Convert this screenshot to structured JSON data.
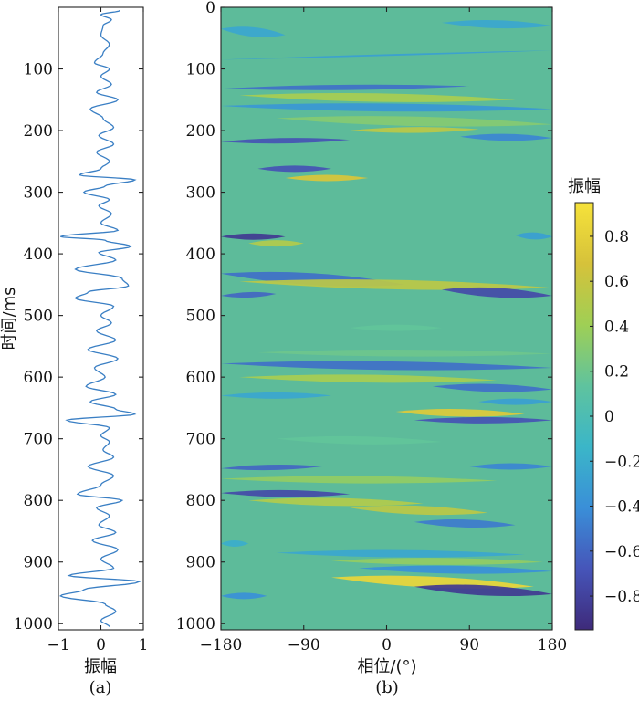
{
  "chart_data": [
    {
      "id": "trace",
      "type": "line",
      "panel_label": "(a)",
      "xlabel": "振幅",
      "ylabel": "时间/ms",
      "xlim": [
        -1,
        1
      ],
      "ylim": [
        0,
        1010
      ],
      "y_reversed": true,
      "xticks": [
        -1,
        0,
        1
      ],
      "xtick_labels": [
        "−1",
        "0",
        "1"
      ],
      "yticks": [
        100,
        200,
        300,
        400,
        500,
        600,
        700,
        800,
        900,
        1000
      ],
      "ytick_labels": [
        "100",
        "200",
        "300",
        "400",
        "500",
        "600",
        "700",
        "800",
        "900",
        "1000"
      ],
      "line_color": "#3a7fc4",
      "series": [
        {
          "time_ms": [
            5,
            12,
            20,
            30,
            45,
            60,
            75,
            90,
            100,
            112,
            125,
            138,
            150,
            165,
            180,
            195,
            208,
            222,
            235,
            250,
            262,
            272,
            280,
            290,
            300,
            312,
            322,
            335,
            350,
            362,
            372,
            378,
            388,
            398,
            410,
            425,
            440,
            452,
            462,
            472,
            485,
            500,
            512,
            525,
            540,
            555,
            570,
            585,
            600,
            615,
            628,
            640,
            652,
            660,
            670,
            682,
            695,
            705,
            718,
            730,
            745,
            760,
            775,
            790,
            800,
            812,
            825,
            840,
            852,
            865,
            880,
            895,
            910,
            922,
            932,
            945,
            955,
            968,
            980,
            995,
            1005
          ],
          "amplitude": [
            0.45,
            0.0,
            0.25,
            0.05,
            0.0,
            0.2,
            0.05,
            -0.15,
            0.2,
            0.0,
            0.25,
            -0.1,
            0.4,
            -0.25,
            0.05,
            0.3,
            -0.05,
            0.3,
            -0.1,
            0.2,
            0.0,
            -0.5,
            0.8,
            0.1,
            -0.4,
            0.2,
            -0.05,
            0.25,
            0.0,
            0.4,
            -0.95,
            0.1,
            0.7,
            -0.05,
            0.35,
            -0.6,
            0.5,
            0.65,
            -0.3,
            -0.6,
            0.3,
            0.0,
            0.25,
            -0.1,
            0.35,
            -0.3,
            0.4,
            -0.15,
            0.1,
            -0.35,
            0.35,
            -0.25,
            0.35,
            0.8,
            -0.8,
            0.2,
            0.0,
            0.2,
            0.05,
            0.3,
            -0.3,
            0.3,
            0.0,
            -0.55,
            0.5,
            -0.1,
            0.2,
            -0.05,
            0.35,
            -0.2,
            0.4,
            0.0,
            0.3,
            -0.75,
            0.9,
            -0.4,
            -0.95,
            0.1,
            0.35,
            0.0,
            0.2
          ]
        }
      ]
    },
    {
      "id": "phase-heatmap",
      "type": "heatmap",
      "panel_label": "(b)",
      "xlabel": "相位/(°)",
      "xlim": [
        -180,
        180
      ],
      "ylim": [
        0,
        1010
      ],
      "y_reversed": true,
      "xticks": [
        -180,
        -90,
        0,
        90,
        180
      ],
      "xtick_labels": [
        "−180",
        "−90",
        "0",
        "90",
        "180"
      ],
      "yticks": [
        0,
        100,
        200,
        300,
        400,
        500,
        600,
        700,
        800,
        900,
        1000
      ],
      "ytick_labels": [
        "0",
        "100",
        "200",
        "300",
        "400",
        "500",
        "600",
        "700",
        "800",
        "900",
        "1000"
      ],
      "background_color": "#5dbb9a",
      "bands": [
        {
          "t0": 35,
          "t1": 45,
          "x0": -180,
          "x1": -110,
          "v": -0.25
        },
        {
          "t0": 25,
          "t1": 30,
          "x0": 60,
          "x1": 180,
          "v": -0.25
        },
        {
          "t0": 85,
          "t1": 70,
          "x0": -180,
          "x1": 180,
          "v": -0.3
        },
        {
          "t0": 132,
          "t1": 128,
          "x0": -180,
          "x1": 90,
          "v": -0.55
        },
        {
          "t0": 143,
          "t1": 150,
          "x0": -160,
          "x1": 140,
          "v": 0.45
        },
        {
          "t0": 160,
          "t1": 165,
          "x0": -180,
          "x1": 180,
          "v": -0.35
        },
        {
          "t0": 180,
          "t1": 190,
          "x0": -120,
          "x1": 180,
          "v": 0.3
        },
        {
          "t0": 200,
          "t1": 198,
          "x0": -40,
          "x1": 100,
          "v": 0.55
        },
        {
          "t0": 218,
          "t1": 215,
          "x0": -180,
          "x1": -40,
          "v": -0.7
        },
        {
          "t0": 210,
          "t1": 212,
          "x0": 80,
          "x1": 180,
          "v": -0.45
        },
        {
          "t0": 262,
          "t1": 262,
          "x0": -140,
          "x1": -60,
          "v": -0.7
        },
        {
          "t0": 277,
          "t1": 277,
          "x0": -110,
          "x1": -20,
          "v": 0.7
        },
        {
          "t0": 372,
          "t1": 372,
          "x0": -180,
          "x1": -110,
          "v": -0.85
        },
        {
          "t0": 383,
          "t1": 383,
          "x0": -150,
          "x1": -90,
          "v": 0.5
        },
        {
          "t0": 370,
          "t1": 372,
          "x0": 140,
          "x1": 180,
          "v": -0.3
        },
        {
          "t0": 432,
          "t1": 450,
          "x0": -180,
          "x1": 20,
          "v": -0.55
        },
        {
          "t0": 445,
          "t1": 455,
          "x0": -160,
          "x1": 180,
          "v": 0.55
        },
        {
          "t0": 468,
          "t1": 465,
          "x0": -180,
          "x1": -120,
          "v": -0.6
        },
        {
          "t0": 458,
          "t1": 468,
          "x0": 60,
          "x1": 180,
          "v": -0.75
        },
        {
          "t0": 520,
          "t1": 520,
          "x0": -40,
          "x1": 60,
          "v": 0.15
        },
        {
          "t0": 560,
          "t1": 562,
          "x0": -140,
          "x1": 180,
          "v": 0.2
        },
        {
          "t0": 578,
          "t1": 585,
          "x0": -180,
          "x1": 180,
          "v": -0.55
        },
        {
          "t0": 600,
          "t1": 605,
          "x0": -160,
          "x1": 120,
          "v": 0.45
        },
        {
          "t0": 615,
          "t1": 620,
          "x0": 50,
          "x1": 180,
          "v": -0.55
        },
        {
          "t0": 630,
          "t1": 630,
          "x0": -180,
          "x1": -60,
          "v": -0.25
        },
        {
          "t0": 640,
          "t1": 640,
          "x0": 100,
          "x1": 180,
          "v": -0.3
        },
        {
          "t0": 656,
          "t1": 660,
          "x0": 10,
          "x1": 150,
          "v": 0.75
        },
        {
          "t0": 670,
          "t1": 670,
          "x0": 30,
          "x1": 180,
          "v": -0.7
        },
        {
          "t0": 700,
          "t1": 705,
          "x0": -120,
          "x1": 60,
          "v": 0.15
        },
        {
          "t0": 748,
          "t1": 745,
          "x0": -180,
          "x1": -70,
          "v": -0.6
        },
        {
          "t0": 745,
          "t1": 745,
          "x0": 90,
          "x1": 180,
          "v": -0.45
        },
        {
          "t0": 765,
          "t1": 768,
          "x0": -180,
          "x1": 120,
          "v": 0.35
        },
        {
          "t0": 788,
          "t1": 790,
          "x0": -180,
          "x1": -40,
          "v": -0.75
        },
        {
          "t0": 800,
          "t1": 805,
          "x0": -150,
          "x1": 40,
          "v": 0.5
        },
        {
          "t0": 812,
          "t1": 820,
          "x0": -40,
          "x1": 110,
          "v": 0.55
        },
        {
          "t0": 835,
          "t1": 840,
          "x0": 30,
          "x1": 140,
          "v": -0.5
        },
        {
          "t0": 870,
          "t1": 870,
          "x0": -180,
          "x1": -150,
          "v": -0.2
        },
        {
          "t0": 885,
          "t1": 888,
          "x0": -120,
          "x1": 150,
          "v": -0.25
        },
        {
          "t0": 898,
          "t1": 900,
          "x0": -60,
          "x1": 170,
          "v": 0.35
        },
        {
          "t0": 910,
          "t1": 915,
          "x0": -30,
          "x1": 180,
          "v": -0.4
        },
        {
          "t0": 925,
          "t1": 940,
          "x0": -60,
          "x1": 160,
          "v": 0.85
        },
        {
          "t0": 940,
          "t1": 952,
          "x0": 30,
          "x1": 180,
          "v": -0.85
        },
        {
          "t0": 955,
          "t1": 955,
          "x0": -180,
          "x1": -130,
          "v": -0.4
        }
      ]
    }
  ],
  "colorbar": {
    "title": "振幅",
    "range": [
      -0.95,
      0.95
    ],
    "ticks": [
      0.8,
      0.6,
      0.4,
      0.2,
      0,
      -0.2,
      -0.4,
      -0.6,
      -0.8
    ],
    "tick_labels": [
      "0.8",
      "0.6",
      "0.4",
      "0.2",
      "0",
      "−0.2",
      "−0.4",
      "−0.6",
      "−0.8"
    ],
    "colors": [
      "#3e2a7a",
      "#4655b9",
      "#3a8fd8",
      "#3bb6c8",
      "#5fc39e",
      "#9fcf55",
      "#d6c23a",
      "#f6e23a"
    ]
  }
}
